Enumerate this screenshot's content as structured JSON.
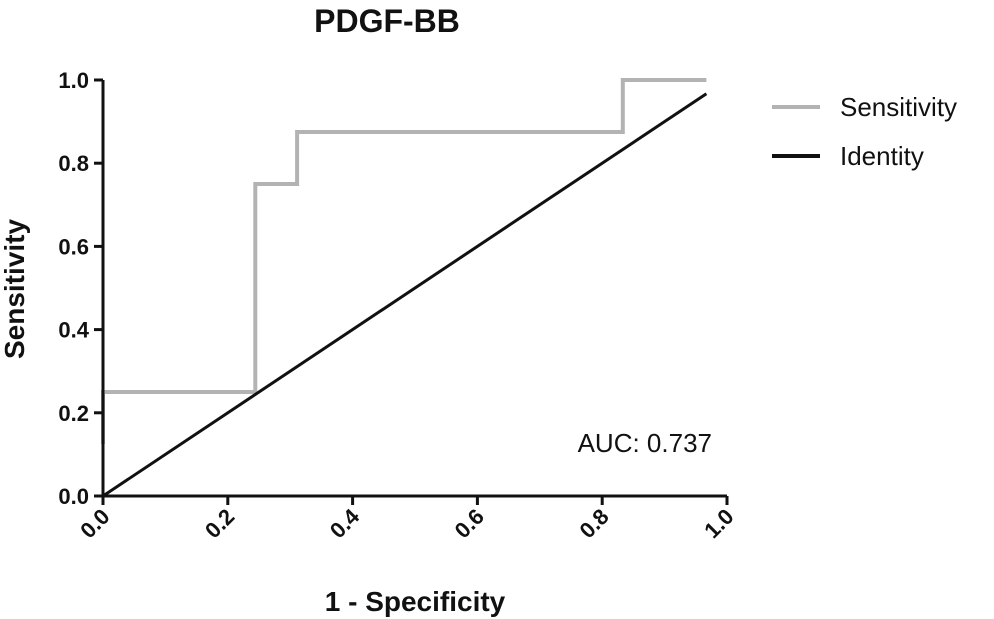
{
  "chart_data": {
    "type": "line",
    "title": "PDGF-BB",
    "xlabel": "1 - Specificity",
    "ylabel": "Sensitivity",
    "xlim": [
      0,
      1
    ],
    "ylim": [
      0,
      1
    ],
    "xticks": [
      "0.0",
      "0.2",
      "0.4",
      "0.6",
      "0.8",
      "1.0"
    ],
    "yticks": [
      "0.0",
      "0.2",
      "0.4",
      "0.6",
      "0.8",
      "1.0"
    ],
    "grid": false,
    "legend_position": "right",
    "series": [
      {
        "name": "Sensitivity",
        "color": "#b3b3b3",
        "step": true,
        "x": [
          0,
          0,
          0.244,
          0.244,
          0.311,
          0.311,
          0.833,
          0.833,
          0.967
        ],
        "y": [
          0.125,
          0.25,
          0.25,
          0.75,
          0.75,
          0.875,
          0.875,
          1.0,
          1.0
        ]
      },
      {
        "name": "Identity",
        "color": "#111111",
        "step": false,
        "x": [
          0,
          0.967
        ],
        "y": [
          0,
          0.967
        ]
      }
    ],
    "annotation": "AUC: 0.737"
  }
}
